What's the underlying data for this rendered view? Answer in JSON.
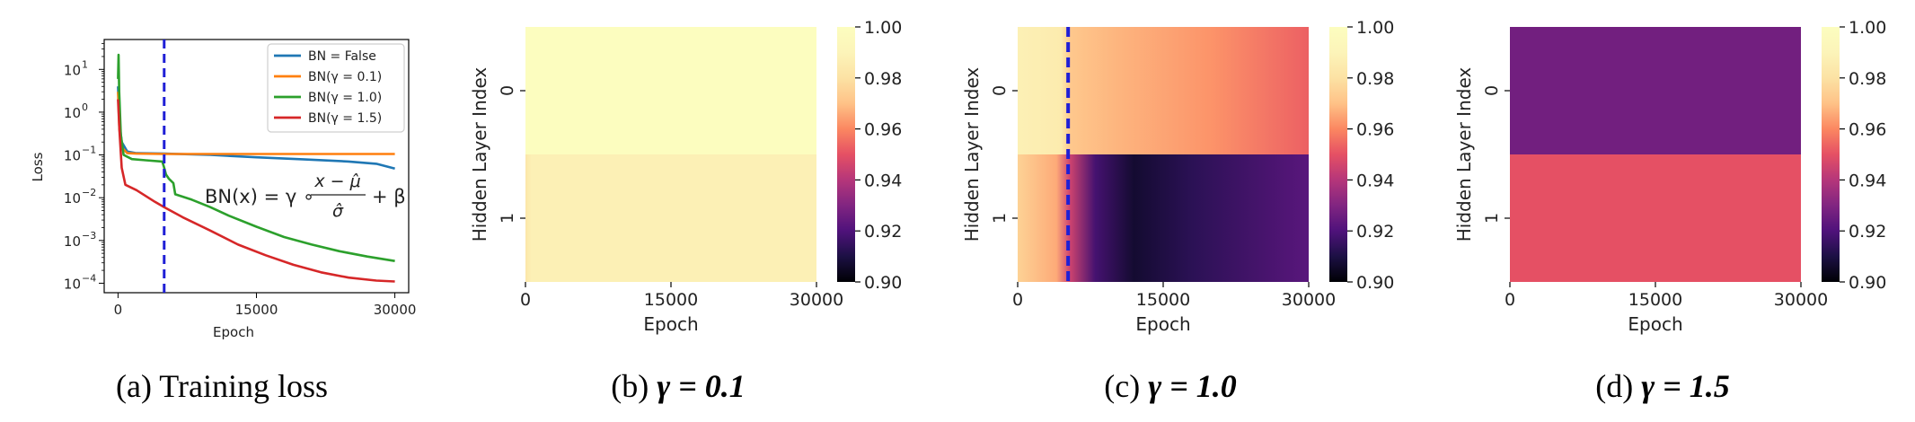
{
  "chart_data": [
    {
      "type": "line",
      "caption": "(a) Training loss",
      "xlabel": "Epoch",
      "ylabel": "Loss",
      "xlim": [
        -1500,
        31500
      ],
      "ylim": [
        6e-05,
        50
      ],
      "y_scale": "log",
      "xticks": [
        "0",
        "15000",
        "30000"
      ],
      "yticks": [
        {
          "label": "10",
          "exp": "1",
          "value": 10
        },
        {
          "label": "10",
          "exp": "0",
          "value": 1
        },
        {
          "label": "10",
          "exp": "−1",
          "value": 0.1
        },
        {
          "label": "10",
          "exp": "−2",
          "value": 0.01
        },
        {
          "label": "10",
          "exp": "−3",
          "value": 0.001
        },
        {
          "label": "10",
          "exp": "−4",
          "value": 0.0001
        }
      ],
      "vline_x": 5000,
      "vline_color": "#1f1fd6",
      "legend_position": "upper right",
      "formula": {
        "lhs": "BN(x) = γ ∘",
        "num": "x − μ̂",
        "den": "σ̂",
        "rhs": "+ β"
      },
      "series": [
        {
          "name": "BN = False",
          "color": "#1f77b4",
          "points": [
            [
              0,
              4
            ],
            [
              150,
              0.6
            ],
            [
              400,
              0.2
            ],
            [
              1000,
              0.12
            ],
            [
              2000,
              0.11
            ],
            [
              5000,
              0.107
            ],
            [
              10000,
              0.1
            ],
            [
              15000,
              0.088
            ],
            [
              20000,
              0.079
            ],
            [
              25000,
              0.07
            ],
            [
              28000,
              0.062
            ],
            [
              30000,
              0.048
            ]
          ]
        },
        {
          "name": "BN(γ = 0.1)",
          "color": "#ff7f0e",
          "points": [
            [
              0,
              3
            ],
            [
              150,
              0.4
            ],
            [
              400,
              0.15
            ],
            [
              1000,
              0.11
            ],
            [
              2000,
              0.107
            ],
            [
              5000,
              0.105
            ],
            [
              15000,
              0.105
            ],
            [
              30000,
              0.105
            ]
          ]
        },
        {
          "name": "BN(γ = 1.0)",
          "color": "#2ca02c",
          "points": [
            [
              0,
              6
            ],
            [
              60,
              22
            ],
            [
              130,
              3
            ],
            [
              300,
              0.3
            ],
            [
              600,
              0.1
            ],
            [
              1500,
              0.08
            ],
            [
              3000,
              0.075
            ],
            [
              4800,
              0.07
            ],
            [
              5000,
              0.05
            ],
            [
              5200,
              0.035
            ],
            [
              5500,
              0.028
            ],
            [
              6000,
              0.022
            ],
            [
              6200,
              0.012
            ],
            [
              8000,
              0.009
            ],
            [
              10000,
              0.006
            ],
            [
              12000,
              0.0038
            ],
            [
              15000,
              0.0021
            ],
            [
              18000,
              0.0012
            ],
            [
              21000,
              0.0008
            ],
            [
              24000,
              0.00056
            ],
            [
              27000,
              0.00042
            ],
            [
              30000,
              0.00033
            ]
          ]
        },
        {
          "name": "BN(γ = 1.5)",
          "color": "#d62728",
          "points": [
            [
              0,
              2
            ],
            [
              150,
              0.4
            ],
            [
              400,
              0.05
            ],
            [
              800,
              0.02
            ],
            [
              2000,
              0.015
            ],
            [
              4000,
              0.008
            ],
            [
              5000,
              0.006
            ],
            [
              7000,
              0.0035
            ],
            [
              10000,
              0.0017
            ],
            [
              13000,
              0.0008
            ],
            [
              16000,
              0.00045
            ],
            [
              19000,
              0.00027
            ],
            [
              22000,
              0.00018
            ],
            [
              25000,
              0.000135
            ],
            [
              28000,
              0.000115
            ],
            [
              30000,
              0.00011
            ]
          ]
        }
      ]
    },
    {
      "type": "heatmap",
      "caption": "(b)",
      "caption_param": "γ = 0.1",
      "xlabel": "Epoch",
      "ylabel": "Hidden Layer Index",
      "xticks": [
        "0",
        "15000",
        "30000"
      ],
      "yticks": [
        "0",
        "1"
      ],
      "xlim": [
        0,
        30000
      ],
      "colorbar": {
        "min": 0.9,
        "max": 1.0,
        "ticks": [
          "1.00",
          "0.98",
          "0.96",
          "0.94",
          "0.92",
          "0.90"
        ]
      },
      "vline_x": null,
      "rows": [
        {
          "index": 0,
          "stops": [
            [
              0,
              1.0
            ],
            [
              30000,
              1.0
            ]
          ]
        },
        {
          "index": 1,
          "stops": [
            [
              0,
              0.982
            ],
            [
              600,
              0.988
            ],
            [
              30000,
              0.988
            ]
          ]
        }
      ]
    },
    {
      "type": "heatmap",
      "caption": "(c)",
      "caption_param": "γ = 1.0",
      "xlabel": "Epoch",
      "ylabel": "Hidden Layer Index",
      "xticks": [
        "0",
        "15000",
        "30000"
      ],
      "yticks": [
        "0",
        "1"
      ],
      "xlim": [
        0,
        30000
      ],
      "colorbar": {
        "min": 0.9,
        "max": 1.0,
        "ticks": [
          "1.00",
          "0.98",
          "0.96",
          "0.94",
          "0.92",
          "0.90"
        ]
      },
      "vline_x": 5200,
      "vline_color": "#1f1fd6",
      "rows": [
        {
          "index": 0,
          "stops": [
            [
              0,
              0.988
            ],
            [
              4500,
              0.985
            ],
            [
              5400,
              0.972
            ],
            [
              10000,
              0.968
            ],
            [
              20000,
              0.962
            ],
            [
              30000,
              0.953
            ]
          ]
        },
        {
          "index": 1,
          "stops": [
            [
              0,
              0.975
            ],
            [
              4000,
              0.966
            ],
            [
              5400,
              0.945
            ],
            [
              8000,
              0.918
            ],
            [
              12000,
              0.907
            ],
            [
              18000,
              0.913
            ],
            [
              30000,
              0.922
            ]
          ]
        }
      ]
    },
    {
      "type": "heatmap",
      "caption": "(d)",
      "caption_param": "γ = 1.5",
      "xlabel": "Epoch",
      "ylabel": "Hidden Layer Index",
      "xticks": [
        "0",
        "15000",
        "30000"
      ],
      "yticks": [
        "0",
        "1"
      ],
      "xlim": [
        0,
        30000
      ],
      "colorbar": {
        "min": 0.9,
        "max": 1.0,
        "ticks": [
          "1.00",
          "0.98",
          "0.96",
          "0.94",
          "0.92",
          "0.90"
        ]
      },
      "vline_x": null,
      "rows": [
        {
          "index": 0,
          "stops": [
            [
              0,
              0.927
            ],
            [
              30000,
              0.927
            ]
          ]
        },
        {
          "index": 1,
          "stops": [
            [
              0,
              0.95
            ],
            [
              30000,
              0.95
            ]
          ]
        }
      ]
    }
  ]
}
